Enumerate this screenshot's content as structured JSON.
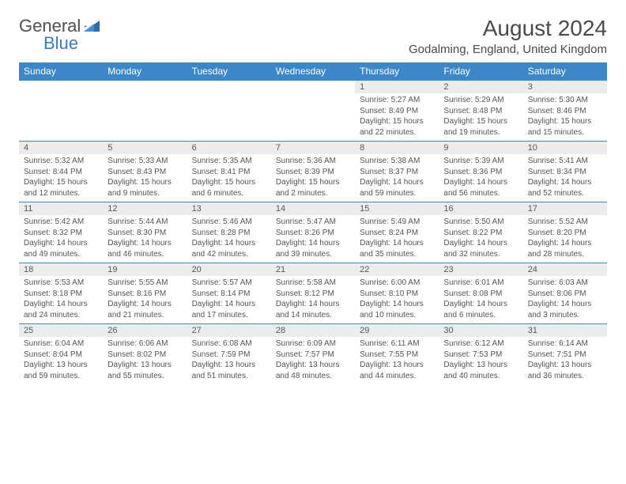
{
  "logo": {
    "general": "General",
    "blue": "Blue"
  },
  "title": "August 2024",
  "location": "Godalming, England, United Kingdom",
  "weekdays": [
    "Sunday",
    "Monday",
    "Tuesday",
    "Wednesday",
    "Thursday",
    "Friday",
    "Saturday"
  ],
  "colors": {
    "header_bg": "#3b87c8",
    "header_fg": "#ffffff",
    "daynum_bg": "#ececec",
    "text": "#555555"
  },
  "weeks": [
    {
      "nums": [
        "",
        "",
        "",
        "",
        "1",
        "2",
        "3"
      ],
      "data": [
        null,
        null,
        null,
        null,
        {
          "sr": "Sunrise: 5:27 AM",
          "ss": "Sunset: 8:49 PM",
          "dl": "Daylight: 15 hours and 22 minutes."
        },
        {
          "sr": "Sunrise: 5:29 AM",
          "ss": "Sunset: 8:48 PM",
          "dl": "Daylight: 15 hours and 19 minutes."
        },
        {
          "sr": "Sunrise: 5:30 AM",
          "ss": "Sunset: 8:46 PM",
          "dl": "Daylight: 15 hours and 15 minutes."
        }
      ]
    },
    {
      "nums": [
        "4",
        "5",
        "6",
        "7",
        "8",
        "9",
        "10"
      ],
      "data": [
        {
          "sr": "Sunrise: 5:32 AM",
          "ss": "Sunset: 8:44 PM",
          "dl": "Daylight: 15 hours and 12 minutes."
        },
        {
          "sr": "Sunrise: 5:33 AM",
          "ss": "Sunset: 8:43 PM",
          "dl": "Daylight: 15 hours and 9 minutes."
        },
        {
          "sr": "Sunrise: 5:35 AM",
          "ss": "Sunset: 8:41 PM",
          "dl": "Daylight: 15 hours and 6 minutes."
        },
        {
          "sr": "Sunrise: 5:36 AM",
          "ss": "Sunset: 8:39 PM",
          "dl": "Daylight: 15 hours and 2 minutes."
        },
        {
          "sr": "Sunrise: 5:38 AM",
          "ss": "Sunset: 8:37 PM",
          "dl": "Daylight: 14 hours and 59 minutes."
        },
        {
          "sr": "Sunrise: 5:39 AM",
          "ss": "Sunset: 8:36 PM",
          "dl": "Daylight: 14 hours and 56 minutes."
        },
        {
          "sr": "Sunrise: 5:41 AM",
          "ss": "Sunset: 8:34 PM",
          "dl": "Daylight: 14 hours and 52 minutes."
        }
      ]
    },
    {
      "nums": [
        "11",
        "12",
        "13",
        "14",
        "15",
        "16",
        "17"
      ],
      "data": [
        {
          "sr": "Sunrise: 5:42 AM",
          "ss": "Sunset: 8:32 PM",
          "dl": "Daylight: 14 hours and 49 minutes."
        },
        {
          "sr": "Sunrise: 5:44 AM",
          "ss": "Sunset: 8:30 PM",
          "dl": "Daylight: 14 hours and 46 minutes."
        },
        {
          "sr": "Sunrise: 5:46 AM",
          "ss": "Sunset: 8:28 PM",
          "dl": "Daylight: 14 hours and 42 minutes."
        },
        {
          "sr": "Sunrise: 5:47 AM",
          "ss": "Sunset: 8:26 PM",
          "dl": "Daylight: 14 hours and 39 minutes."
        },
        {
          "sr": "Sunrise: 5:49 AM",
          "ss": "Sunset: 8:24 PM",
          "dl": "Daylight: 14 hours and 35 minutes."
        },
        {
          "sr": "Sunrise: 5:50 AM",
          "ss": "Sunset: 8:22 PM",
          "dl": "Daylight: 14 hours and 32 minutes."
        },
        {
          "sr": "Sunrise: 5:52 AM",
          "ss": "Sunset: 8:20 PM",
          "dl": "Daylight: 14 hours and 28 minutes."
        }
      ]
    },
    {
      "nums": [
        "18",
        "19",
        "20",
        "21",
        "22",
        "23",
        "24"
      ],
      "data": [
        {
          "sr": "Sunrise: 5:53 AM",
          "ss": "Sunset: 8:18 PM",
          "dl": "Daylight: 14 hours and 24 minutes."
        },
        {
          "sr": "Sunrise: 5:55 AM",
          "ss": "Sunset: 8:16 PM",
          "dl": "Daylight: 14 hours and 21 minutes."
        },
        {
          "sr": "Sunrise: 5:57 AM",
          "ss": "Sunset: 8:14 PM",
          "dl": "Daylight: 14 hours and 17 minutes."
        },
        {
          "sr": "Sunrise: 5:58 AM",
          "ss": "Sunset: 8:12 PM",
          "dl": "Daylight: 14 hours and 14 minutes."
        },
        {
          "sr": "Sunrise: 6:00 AM",
          "ss": "Sunset: 8:10 PM",
          "dl": "Daylight: 14 hours and 10 minutes."
        },
        {
          "sr": "Sunrise: 6:01 AM",
          "ss": "Sunset: 8:08 PM",
          "dl": "Daylight: 14 hours and 6 minutes."
        },
        {
          "sr": "Sunrise: 6:03 AM",
          "ss": "Sunset: 8:06 PM",
          "dl": "Daylight: 14 hours and 3 minutes."
        }
      ]
    },
    {
      "nums": [
        "25",
        "26",
        "27",
        "28",
        "29",
        "30",
        "31"
      ],
      "data": [
        {
          "sr": "Sunrise: 6:04 AM",
          "ss": "Sunset: 8:04 PM",
          "dl": "Daylight: 13 hours and 59 minutes."
        },
        {
          "sr": "Sunrise: 6:06 AM",
          "ss": "Sunset: 8:02 PM",
          "dl": "Daylight: 13 hours and 55 minutes."
        },
        {
          "sr": "Sunrise: 6:08 AM",
          "ss": "Sunset: 7:59 PM",
          "dl": "Daylight: 13 hours and 51 minutes."
        },
        {
          "sr": "Sunrise: 6:09 AM",
          "ss": "Sunset: 7:57 PM",
          "dl": "Daylight: 13 hours and 48 minutes."
        },
        {
          "sr": "Sunrise: 6:11 AM",
          "ss": "Sunset: 7:55 PM",
          "dl": "Daylight: 13 hours and 44 minutes."
        },
        {
          "sr": "Sunrise: 6:12 AM",
          "ss": "Sunset: 7:53 PM",
          "dl": "Daylight: 13 hours and 40 minutes."
        },
        {
          "sr": "Sunrise: 6:14 AM",
          "ss": "Sunset: 7:51 PM",
          "dl": "Daylight: 13 hours and 36 minutes."
        }
      ]
    }
  ]
}
